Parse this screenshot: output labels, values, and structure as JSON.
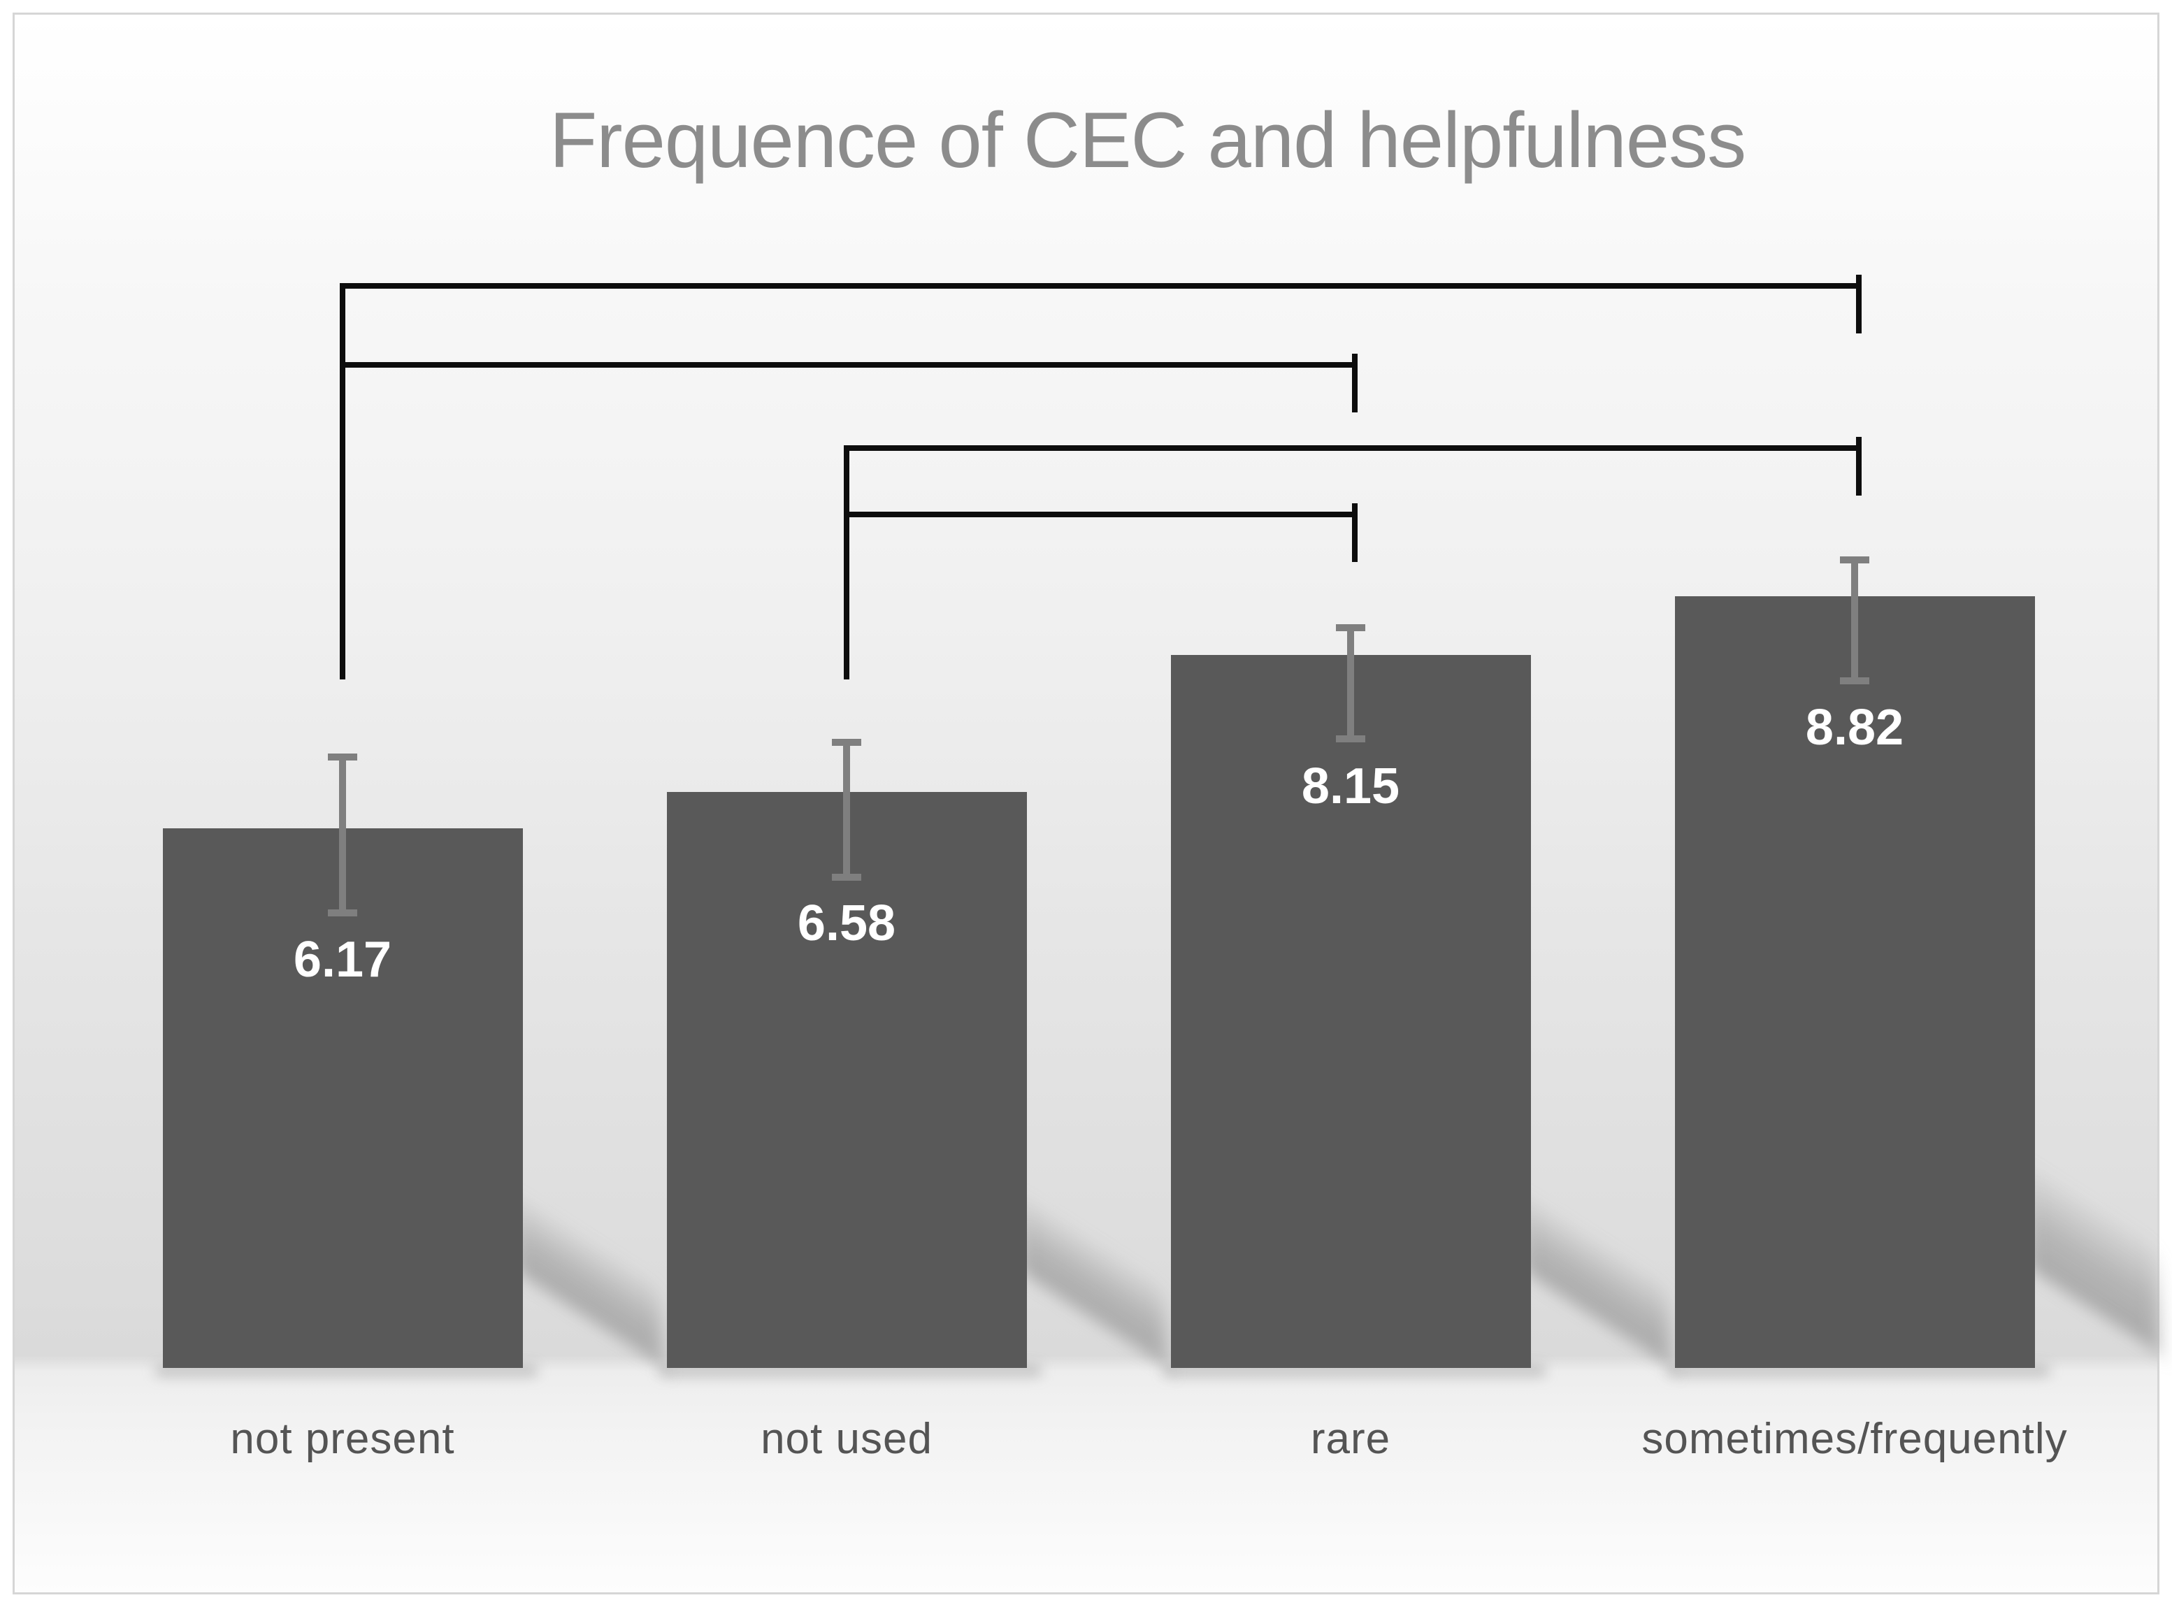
{
  "chart_data": {
    "type": "bar",
    "title": "Frequence of CEC and helpfulness",
    "categories": [
      "not present",
      "not used",
      "rare",
      "sometimes/frequently"
    ],
    "values": [
      6.17,
      6.58,
      8.15,
      8.82
    ],
    "value_labels": [
      "6.17",
      "6.58",
      "8.15",
      "8.82"
    ],
    "error_up": [
      0.85,
      0.61,
      0.35,
      0.45
    ],
    "error_down": [
      1.01,
      1.01,
      1.0,
      1.01
    ],
    "significance_brackets": [
      {
        "from": 0,
        "to": 3
      },
      {
        "from": 0,
        "to": 2
      },
      {
        "from": 1,
        "to": 3
      },
      {
        "from": 1,
        "to": 2
      }
    ],
    "xlabel": "",
    "ylabel": "",
    "ylim": [
      0,
      10
    ],
    "grid": false,
    "legend": false,
    "axes_hidden": true,
    "bar_color": "#595959",
    "error_bar_color": "#7f7f7f",
    "value_label_color": "#ffffff",
    "category_label_color": "#545454",
    "bracket_color": "#0d0d0d",
    "title_color": "#8c8c8c",
    "frame_border_color": "#d6d6d6"
  }
}
